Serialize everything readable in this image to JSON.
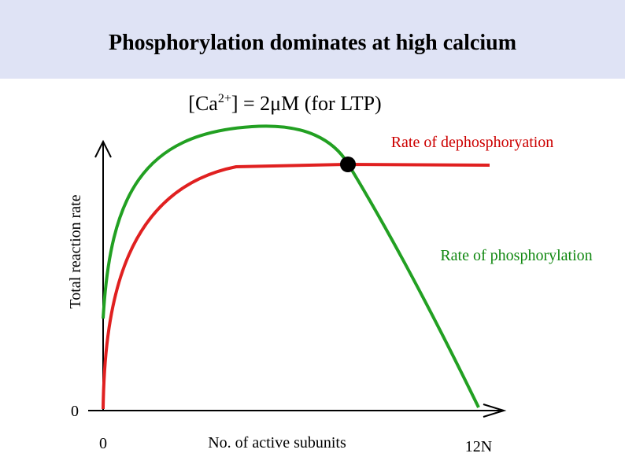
{
  "header": {
    "title": "Phosphorylation dominates at high calcium"
  },
  "subtitle": {
    "prefix": "[Ca",
    "superscript": "2+",
    "suffix": "] = 2μM (for LTP)"
  },
  "axes": {
    "y_label": "Total reaction rate",
    "x_label": "No. of active subunits",
    "y_origin": "0",
    "x_origin": "0",
    "x_end": "12N"
  },
  "curves": {
    "dephosphorylation": "Rate of dephosphoryation",
    "phosphorylation": "Rate of phosphorylation"
  }
}
